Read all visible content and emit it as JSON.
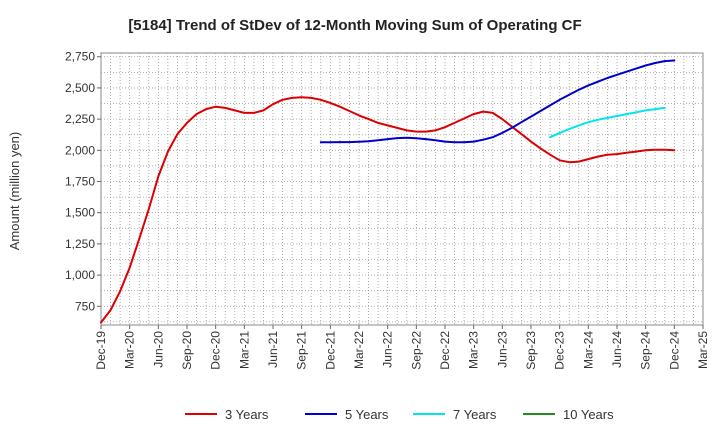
{
  "chart_data": {
    "type": "line",
    "title": "[5184]  Trend of StDev of 12-Month Moving Sum of Operating CF",
    "xlabel": "",
    "ylabel": "Amount (million yen)",
    "ylim": [
      600,
      2780
    ],
    "yticks": [
      750,
      1000,
      1250,
      1500,
      1750,
      2000,
      2250,
      2500,
      2750
    ],
    "ytick_labels": [
      "750",
      "1,000",
      "1,250",
      "1,500",
      "1,750",
      "2,000",
      "2,250",
      "2,500",
      "2,750"
    ],
    "x_categories": [
      "Dec-19",
      "Mar-20",
      "Jun-20",
      "Sep-20",
      "Dec-20",
      "Mar-21",
      "Jun-21",
      "Sep-21",
      "Dec-21",
      "Mar-22",
      "Jun-22",
      "Sep-22",
      "Dec-22",
      "Mar-23",
      "Jun-23",
      "Sep-23",
      "Dec-23",
      "Mar-24",
      "Jun-24",
      "Sep-24",
      "Dec-24",
      "Mar-25"
    ],
    "grid": true,
    "legend_position": "bottom",
    "series": [
      {
        "name": "3 Years",
        "color": "#dd0000",
        "start_index": 0,
        "step": 0.3333,
        "values": [
          620,
          720,
          870,
          1060,
          1290,
          1530,
          1790,
          1990,
          2130,
          2220,
          2290,
          2330,
          2350,
          2340,
          2320,
          2300,
          2300,
          2320,
          2370,
          2405,
          2420,
          2425,
          2420,
          2405,
          2380,
          2350,
          2315,
          2280,
          2250,
          2220,
          2200,
          2180,
          2160,
          2150,
          2150,
          2160,
          2185,
          2220,
          2255,
          2290,
          2310,
          2300,
          2250,
          2190,
          2130,
          2070,
          2015,
          1965,
          1920,
          1905,
          1910,
          1930,
          1950,
          1965,
          1970,
          1980,
          1990,
          2000,
          2005,
          2005,
          2000
        ]
      },
      {
        "name": "5 Years",
        "color": "#0000cc",
        "start_index": 7.6667,
        "step": 0.3333,
        "values": [
          2065,
          2065,
          2066,
          2066,
          2068,
          2072,
          2080,
          2090,
          2098,
          2100,
          2097,
          2090,
          2080,
          2070,
          2065,
          2065,
          2070,
          2085,
          2105,
          2140,
          2180,
          2225,
          2270,
          2315,
          2360,
          2405,
          2445,
          2485,
          2520,
          2550,
          2580,
          2605,
          2630,
          2655,
          2680,
          2700,
          2715,
          2720
        ]
      },
      {
        "name": "7 Years",
        "color": "#00e5ee",
        "start_index": 15.6667,
        "step": 0.3333,
        "values": [
          2105,
          2140,
          2170,
          2200,
          2225,
          2245,
          2260,
          2275,
          2290,
          2305,
          2320,
          2330,
          2340
        ]
      },
      {
        "name": "10 Years",
        "color": "#228b22",
        "start_index": 0,
        "step": 0.3333,
        "values": []
      }
    ]
  }
}
